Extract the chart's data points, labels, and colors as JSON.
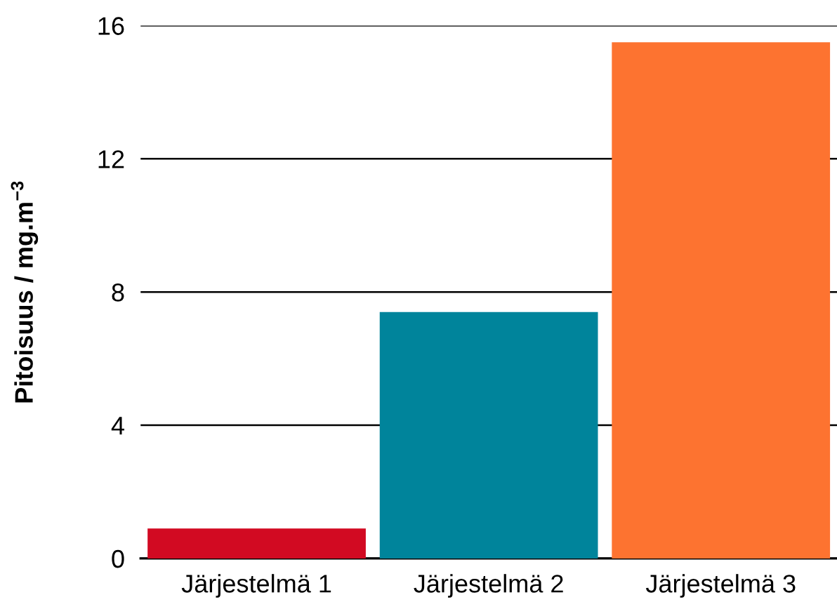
{
  "chart_data": {
    "type": "bar",
    "ylabel": "Pitoisuus / mg.m$^{−3}$",
    "categories": [
      "Järjestelmä 1",
      "Järjestelmä 2",
      "Järjestelmä 3"
    ],
    "values": [
      0.9,
      7.4,
      15.5
    ],
    "colors": [
      "#d20a22",
      "#00849b",
      "#fd7330"
    ],
    "ylim": [
      0,
      16
    ],
    "yticks": [
      0,
      4,
      8,
      12,
      16
    ],
    "grid": "y",
    "legend": false
  }
}
